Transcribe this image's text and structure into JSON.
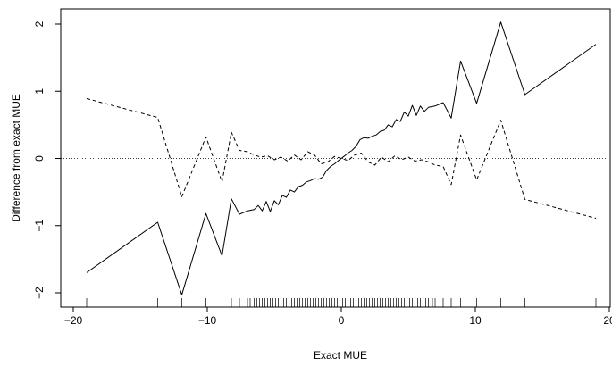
{
  "chart_data": {
    "type": "line",
    "title": "",
    "xlabel": "Exact MUE",
    "ylabel": "Difference from exact MUE",
    "xlim": [
      -20,
      20
    ],
    "ylim": [
      -2,
      2
    ],
    "x_ticks": [
      -20,
      -10,
      0,
      10,
      20
    ],
    "x_tick_labels": [
      "−20",
      "−10",
      "0",
      "10",
      "20"
    ],
    "y_ticks": [
      -2,
      -1,
      0,
      1,
      2
    ],
    "y_tick_labels": [
      "−2",
      "−1",
      "0",
      "1",
      "2"
    ],
    "grid": false,
    "legend": "none",
    "reference_line": {
      "y": 0,
      "style": "dotted"
    },
    "series": [
      {
        "style": "solid",
        "x": [
          -19.0,
          -13.7,
          -11.9,
          -10.1,
          -8.9,
          -8.2,
          -7.6,
          -7.0,
          -6.5,
          -6.2,
          -5.9,
          -5.6,
          -5.3,
          -5.0,
          -4.7,
          -4.4,
          -4.1,
          -3.8,
          -3.5,
          -3.2,
          -2.9,
          -2.6,
          -2.3,
          -2.0,
          -1.7,
          -1.4,
          -1.1,
          -0.8,
          -0.5,
          -0.2,
          0.0,
          0.2,
          0.5,
          0.8,
          1.1,
          1.4,
          1.7,
          2.0,
          2.3,
          2.6,
          2.9,
          3.2,
          3.5,
          3.8,
          4.1,
          4.4,
          4.7,
          5.0,
          5.3,
          5.6,
          5.9,
          6.2,
          6.5,
          7.0,
          7.6,
          8.2,
          8.9,
          10.1,
          11.9,
          13.7,
          19.0
        ],
        "y": [
          -1.7,
          -0.95,
          -2.03,
          -0.82,
          -1.45,
          -0.6,
          -0.83,
          -0.78,
          -0.76,
          -0.7,
          -0.78,
          -0.64,
          -0.79,
          -0.63,
          -0.69,
          -0.55,
          -0.58,
          -0.47,
          -0.5,
          -0.42,
          -0.4,
          -0.35,
          -0.33,
          -0.3,
          -0.31,
          -0.28,
          -0.18,
          -0.12,
          -0.08,
          -0.03,
          0.0,
          0.03,
          0.08,
          0.12,
          0.18,
          0.28,
          0.31,
          0.3,
          0.33,
          0.35,
          0.4,
          0.42,
          0.5,
          0.47,
          0.58,
          0.55,
          0.69,
          0.63,
          0.79,
          0.64,
          0.78,
          0.7,
          0.76,
          0.78,
          0.83,
          0.6,
          1.45,
          0.82,
          2.03,
          0.95,
          1.7
        ]
      },
      {
        "style": "dashed",
        "x": [
          -19.0,
          -13.7,
          -11.9,
          -10.1,
          -8.9,
          -8.2,
          -7.6,
          -7.0,
          -6.5,
          -6.0,
          -5.5,
          -5.0,
          -4.5,
          -4.0,
          -3.5,
          -3.0,
          -2.5,
          -2.0,
          -1.5,
          -1.0,
          -0.5,
          0.0,
          0.5,
          1.0,
          1.5,
          2.0,
          2.5,
          3.0,
          3.5,
          4.0,
          4.5,
          5.0,
          5.5,
          6.0,
          6.5,
          7.0,
          7.6,
          8.2,
          8.9,
          10.1,
          11.9,
          13.7,
          19.0
        ],
        "y": [
          0.89,
          0.61,
          -0.57,
          0.32,
          -0.35,
          0.39,
          0.12,
          0.1,
          0.05,
          0.02,
          0.04,
          -0.02,
          0.02,
          -0.04,
          0.05,
          -0.02,
          0.1,
          0.05,
          -0.08,
          -0.05,
          0.03,
          0.0,
          -0.03,
          0.05,
          0.08,
          -0.05,
          -0.1,
          0.02,
          -0.05,
          0.04,
          -0.02,
          0.02,
          -0.04,
          -0.02,
          -0.05,
          -0.1,
          -0.12,
          -0.39,
          0.35,
          -0.32,
          0.57,
          -0.61,
          -0.89
        ]
      }
    ],
    "rug": [
      -19.0,
      -13.7,
      -11.9,
      -10.1,
      -8.9,
      -8.2,
      -7.6,
      -7.0,
      -6.8,
      -6.5,
      -6.3,
      -6.1,
      -5.9,
      -5.7,
      -5.5,
      -5.3,
      -5.1,
      -4.9,
      -4.7,
      -4.5,
      -4.3,
      -4.1,
      -3.9,
      -3.7,
      -3.5,
      -3.3,
      -3.1,
      -2.9,
      -2.7,
      -2.5,
      -2.3,
      -2.1,
      -1.9,
      -1.7,
      -1.5,
      -1.3,
      -1.1,
      -0.9,
      -0.7,
      -0.5,
      -0.3,
      -0.1,
      0.1,
      0.3,
      0.5,
      0.7,
      0.9,
      1.1,
      1.3,
      1.5,
      1.7,
      1.9,
      2.1,
      2.3,
      2.5,
      2.7,
      2.9,
      3.1,
      3.3,
      3.5,
      3.7,
      3.9,
      4.1,
      4.3,
      4.5,
      4.7,
      4.9,
      5.1,
      5.3,
      5.5,
      5.7,
      5.9,
      6.1,
      6.3,
      6.5,
      6.8,
      7.0,
      7.6,
      8.2,
      8.9,
      10.1,
      11.9,
      13.7,
      19.0
    ]
  }
}
